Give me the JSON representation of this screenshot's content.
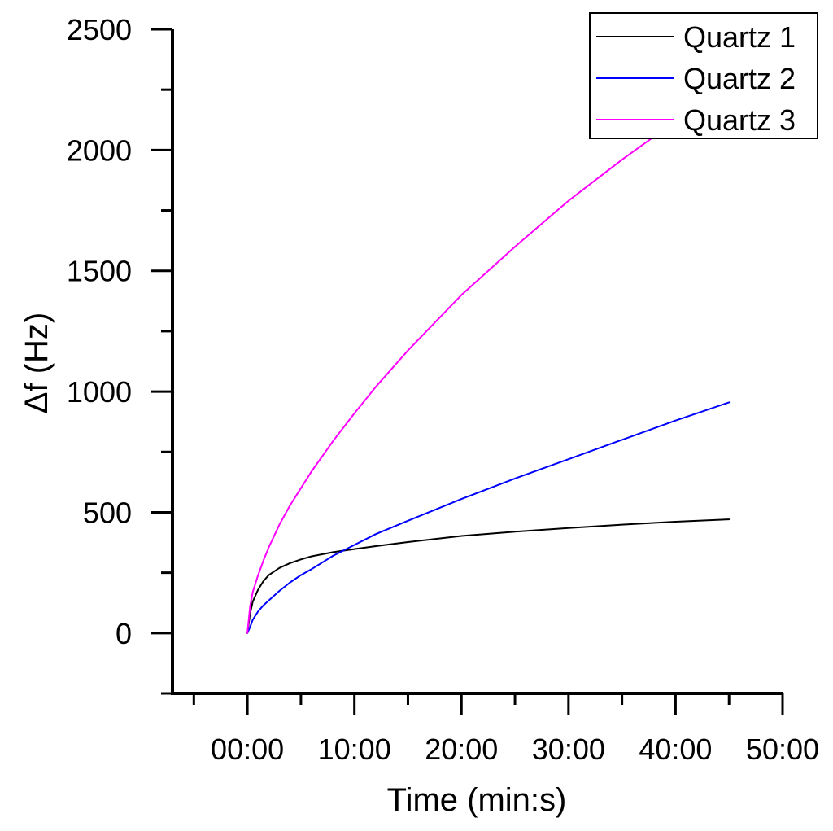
{
  "chart_data": {
    "type": "line",
    "title": "",
    "xlabel": "Time (min:s)",
    "ylabel": "Δf (Hz)",
    "xlim": [
      -7,
      50
    ],
    "ylim": [
      -250,
      2500
    ],
    "x_ticks": [
      {
        "value": 0,
        "label": "00:00"
      },
      {
        "value": 10,
        "label": "10:00"
      },
      {
        "value": 20,
        "label": "20:00"
      },
      {
        "value": 30,
        "label": "30:00"
      },
      {
        "value": 40,
        "label": "40:00"
      },
      {
        "value": 50,
        "label": "50:00"
      }
    ],
    "y_ticks": [
      {
        "value": 0,
        "label": "0"
      },
      {
        "value": 500,
        "label": "500"
      },
      {
        "value": 1000,
        "label": "1000"
      },
      {
        "value": 1500,
        "label": "1500"
      },
      {
        "value": 2000,
        "label": "2000"
      },
      {
        "value": 2500,
        "label": "2500"
      }
    ],
    "grid": false,
    "legend": {
      "position": "top-right"
    },
    "series": [
      {
        "name": "Quartz 1",
        "color": "#000000",
        "x": [
          0,
          0.25,
          0.5,
          1,
          1.5,
          2,
          3,
          4,
          5,
          6,
          8,
          10,
          12,
          15,
          20,
          25,
          30,
          35,
          40,
          45
        ],
        "y": [
          0,
          80,
          130,
          180,
          215,
          240,
          270,
          290,
          305,
          318,
          335,
          348,
          360,
          377,
          402,
          420,
          435,
          449,
          461,
          471
        ]
      },
      {
        "name": "Quartz 2",
        "color": "#0000ff",
        "x": [
          0,
          0.25,
          0.5,
          1,
          1.5,
          2,
          3,
          4,
          5,
          6,
          8,
          10,
          12,
          15,
          20,
          25,
          30,
          35,
          40,
          45
        ],
        "y": [
          0,
          25,
          55,
          90,
          115,
          135,
          175,
          210,
          240,
          265,
          320,
          365,
          410,
          465,
          555,
          640,
          720,
          800,
          880,
          955
        ]
      },
      {
        "name": "Quartz 3",
        "color": "#ff00ff",
        "x": [
          0,
          0.25,
          0.5,
          1,
          1.5,
          2,
          3,
          4,
          5,
          6,
          8,
          10,
          12,
          15,
          20,
          25,
          30,
          35,
          40,
          45
        ],
        "y": [
          0,
          110,
          170,
          240,
          300,
          355,
          450,
          530,
          600,
          670,
          795,
          910,
          1020,
          1170,
          1400,
          1600,
          1790,
          1960,
          2120,
          2270
        ]
      }
    ]
  }
}
